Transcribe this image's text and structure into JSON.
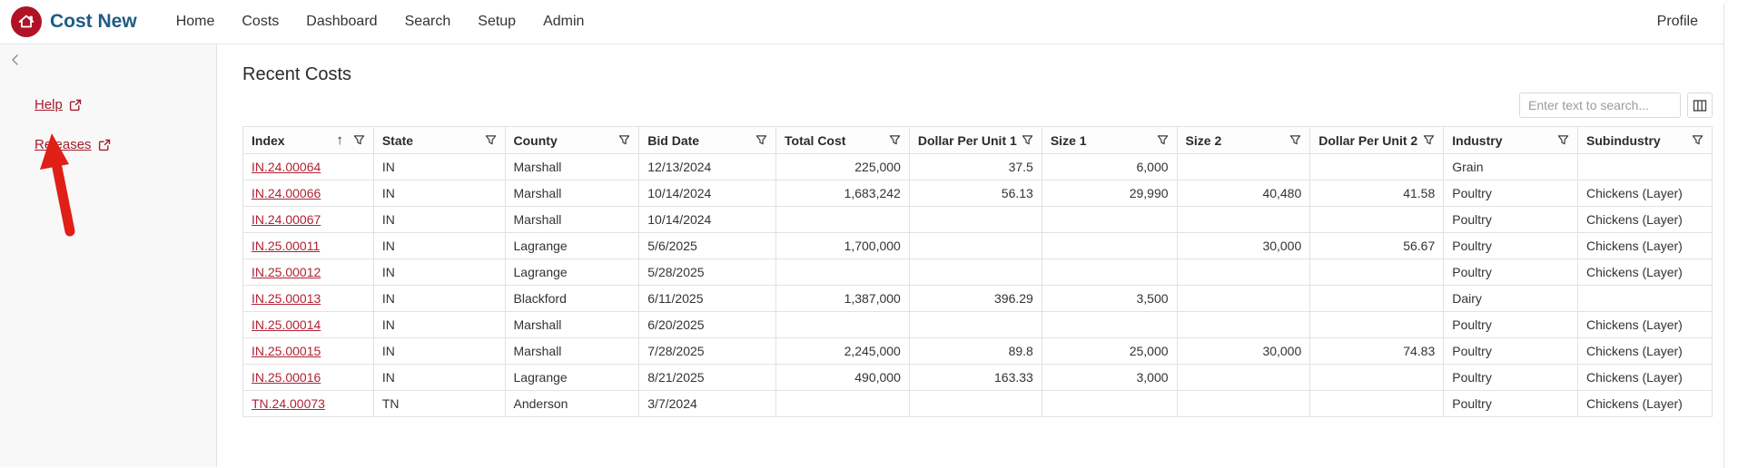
{
  "app": {
    "brand": "Cost New",
    "logo_icon": "house-icon",
    "nav_items": [
      "Home",
      "Costs",
      "Dashboard",
      "Search",
      "Setup",
      "Admin"
    ],
    "profile_label": "Profile"
  },
  "sidebar": {
    "collapse_icon": "chevron-left-icon",
    "links": [
      {
        "label": "Help",
        "icon": "external-link-icon"
      },
      {
        "label": "Releases",
        "icon": "external-link-icon"
      }
    ],
    "annotation": "red-arrow-pointing-to-releases"
  },
  "content": {
    "heading": "Recent Costs",
    "search": {
      "placeholder": "Enter text to search..."
    },
    "column_chooser_icon": "column-chooser-icon",
    "table": {
      "columns": [
        {
          "label": "Index",
          "align": "left",
          "sort": "asc",
          "filter": true
        },
        {
          "label": "State",
          "align": "left",
          "filter": true
        },
        {
          "label": "County",
          "align": "left",
          "filter": true
        },
        {
          "label": "Bid Date",
          "align": "left",
          "filter": true
        },
        {
          "label": "Total Cost",
          "align": "right",
          "filter": true
        },
        {
          "label": "Dollar Per Unit 1",
          "align": "right",
          "filter": true
        },
        {
          "label": "Size 1",
          "align": "right",
          "filter": true
        },
        {
          "label": "Size 2",
          "align": "right",
          "filter": true
        },
        {
          "label": "Dollar Per Unit 2",
          "align": "right",
          "filter": true
        },
        {
          "label": "Industry",
          "align": "left",
          "filter": true
        },
        {
          "label": "Subindustry",
          "align": "left",
          "filter": true
        }
      ],
      "rows": [
        [
          "IN.24.00064",
          "IN",
          "Marshall",
          "12/13/2024",
          "225,000",
          "37.5",
          "6,000",
          "",
          "",
          "Grain",
          ""
        ],
        [
          "IN.24.00066",
          "IN",
          "Marshall",
          "10/14/2024",
          "1,683,242",
          "56.13",
          "29,990",
          "40,480",
          "41.58",
          "Poultry",
          "Chickens (Layer)"
        ],
        [
          "IN.24.00067",
          "IN",
          "Marshall",
          "10/14/2024",
          "",
          "",
          "",
          "",
          "",
          "Poultry",
          "Chickens (Layer)"
        ],
        [
          "IN.25.00011",
          "IN",
          "Lagrange",
          "5/6/2025",
          "1,700,000",
          "",
          "",
          "30,000",
          "56.67",
          "Poultry",
          "Chickens (Layer)"
        ],
        [
          "IN.25.00012",
          "IN",
          "Lagrange",
          "5/28/2025",
          "",
          "",
          "",
          "",
          "",
          "Poultry",
          "Chickens (Layer)"
        ],
        [
          "IN.25.00013",
          "IN",
          "Blackford",
          "6/11/2025",
          "1,387,000",
          "396.29",
          "3,500",
          "",
          "",
          "Dairy",
          ""
        ],
        [
          "IN.25.00014",
          "IN",
          "Marshall",
          "6/20/2025",
          "",
          "",
          "",
          "",
          "",
          "Poultry",
          "Chickens (Layer)"
        ],
        [
          "IN.25.00015",
          "IN",
          "Marshall",
          "7/28/2025",
          "2,245,000",
          "89.8",
          "25,000",
          "30,000",
          "74.83",
          "Poultry",
          "Chickens (Layer)"
        ],
        [
          "IN.25.00016",
          "IN",
          "Lagrange",
          "8/21/2025",
          "490,000",
          "163.33",
          "3,000",
          "",
          "",
          "Poultry",
          "Chickens (Layer)"
        ],
        [
          "TN.24.00073",
          "TN",
          "Anderson",
          "3/7/2024",
          "",
          "",
          "",
          "",
          "",
          "Poultry",
          "Chickens (Layer)"
        ]
      ]
    }
  },
  "colors": {
    "brand_red": "#b11226",
    "brand_blue": "#1d5c86",
    "link_red": "#a21d2e",
    "index_link_red": "#b02333",
    "annotation_arrow_red": "#e01f17",
    "border_gray": "#e2e2e2"
  }
}
